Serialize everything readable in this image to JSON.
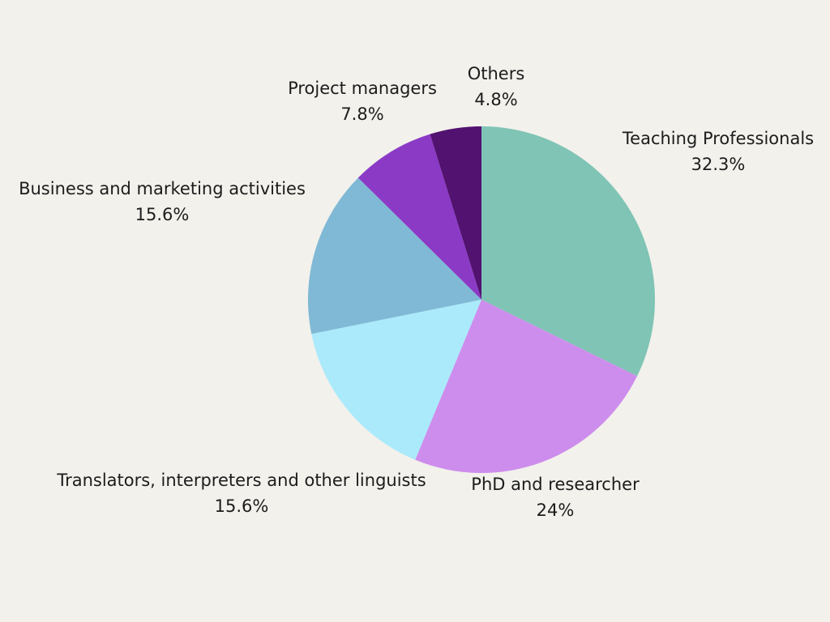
{
  "chart_data": {
    "type": "pie",
    "title": "",
    "slices": [
      {
        "label": "Teaching Professionals",
        "value": 32.3,
        "value_label": "32.3%",
        "color": "#7fc4b5"
      },
      {
        "label": "PhD and researcher",
        "value": 24,
        "value_label": "24%",
        "color": "#cd8ded"
      },
      {
        "label": "Translators, interpreters and other linguists",
        "value": 15.6,
        "value_label": "15.6%",
        "color": "#abeafb"
      },
      {
        "label": "Business and marketing activities",
        "value": 15.6,
        "value_label": "15.6%",
        "color": "#80b9d5"
      },
      {
        "label": "Project managers",
        "value": 7.8,
        "value_label": "7.8%",
        "color": "#8b3ac6"
      },
      {
        "label": "Others",
        "value": 4.8,
        "value_label": "4.8%",
        "color": "#521270"
      }
    ],
    "start_angle": "12 o'clock",
    "direction": "clockwise",
    "legend": "none (labels placed beside slices)"
  }
}
